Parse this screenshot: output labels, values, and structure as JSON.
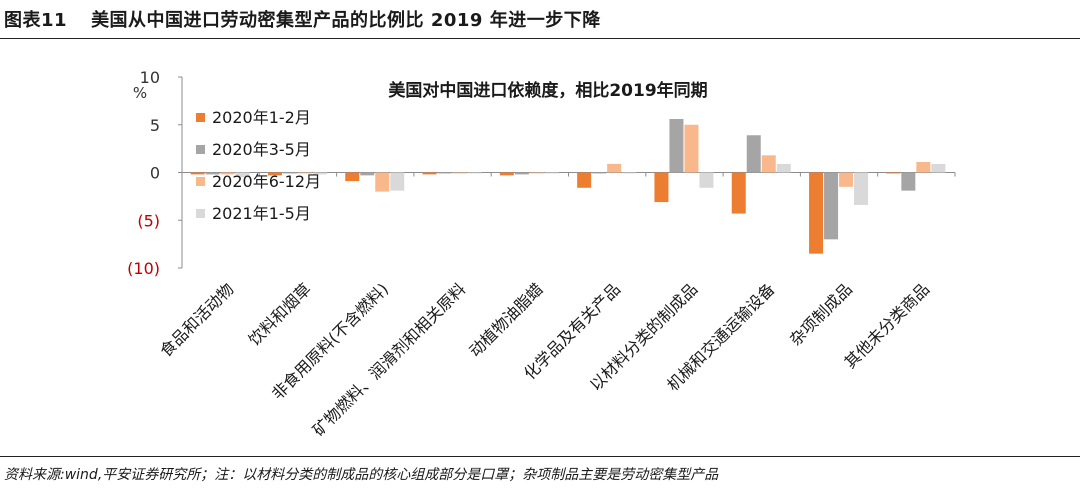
{
  "figure": {
    "number": "图表11",
    "caption": "美国从中国进口劳动密集型产品的比例比 2019 年进一步下降"
  },
  "source_note": "资料来源:wind,平安证券研究所；注：以材料分类的制成品的核心组成部分是口罩；杂项制品主要是劳动密集型产品",
  "chart_data": {
    "type": "bar",
    "title": "美国对中国进口依赖度，相比2019年同期",
    "ylabel": "%",
    "ylim": [
      -10,
      10
    ],
    "yticks": [
      {
        "value": 10,
        "label": "10",
        "negative": false
      },
      {
        "value": 5,
        "label": "5",
        "negative": false
      },
      {
        "value": 0,
        "label": "0",
        "negative": false
      },
      {
        "value": -5,
        "label": "(5)",
        "negative": true
      },
      {
        "value": -10,
        "label": "(10)",
        "negative": true
      }
    ],
    "categories": [
      "食品和活动物",
      "饮料和烟草",
      "非食用原料(不含燃料)",
      "矿物燃料、润滑剂和相关原料",
      "动植物油脂蜡",
      "化学品及有关产品",
      "以材料分类的制成品",
      "机械和交通运输设备",
      "杂项制成品",
      "其他未分类商品"
    ],
    "series": [
      {
        "name": "2020年1-2月",
        "color": "#ed7d31",
        "values": [
          -0.2,
          -0.3,
          -0.9,
          -0.2,
          -0.3,
          -1.6,
          -3.1,
          -4.3,
          -8.5,
          -0.1
        ]
      },
      {
        "name": "2020年3-5月",
        "color": "#a5a5a5",
        "values": [
          -0.2,
          -0.1,
          -0.3,
          -0.1,
          -0.2,
          -0.1,
          5.6,
          3.9,
          -7.0,
          -1.9
        ]
      },
      {
        "name": "2020年6-12月",
        "color": "#f8b88b",
        "values": [
          -0.2,
          -0.1,
          -2.0,
          -0.1,
          -0.1,
          0.9,
          5.0,
          1.8,
          -1.5,
          1.1
        ]
      },
      {
        "name": "2021年1-5月",
        "color": "#d9d9d9",
        "values": [
          -0.5,
          -0.2,
          -1.9,
          -0.1,
          -0.1,
          -0.1,
          -1.6,
          0.9,
          -3.4,
          0.9
        ]
      }
    ],
    "negative_tick_color": "#c00000",
    "legend_position": "left-inside"
  }
}
